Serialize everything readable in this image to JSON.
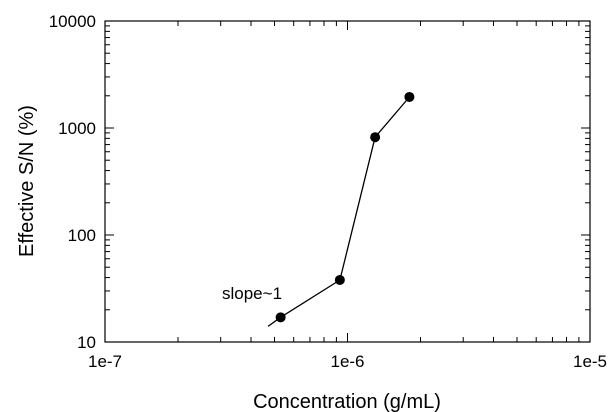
{
  "chart_data": {
    "type": "scatter",
    "xlabel": "Concentration (g/mL)",
    "ylabel": "Effective S/N (%)",
    "xscale": "log",
    "yscale": "log",
    "xlim": [
      1e-07,
      1e-05
    ],
    "ylim": [
      10,
      10000
    ],
    "grid": false,
    "xticks": [
      {
        "value": 1e-07,
        "label": "1e-7"
      },
      {
        "value": 1e-06,
        "label": "1e-6"
      },
      {
        "value": 1e-05,
        "label": "1e-5"
      }
    ],
    "yticks": [
      {
        "value": 10,
        "label": "10"
      },
      {
        "value": 100,
        "label": "100"
      },
      {
        "value": 1000,
        "label": "1000"
      },
      {
        "value": 10000,
        "label": "10000"
      }
    ],
    "series": [
      {
        "x": [
          5.3e-07,
          9.3e-07,
          1.3e-06,
          1.8e-06
        ],
        "y": [
          17,
          38,
          820,
          1950
        ]
      }
    ],
    "reference_line": {
      "label": "slope~1",
      "x": [
        4.7e-07,
        5.3e-07
      ],
      "y": [
        14,
        17
      ]
    }
  }
}
